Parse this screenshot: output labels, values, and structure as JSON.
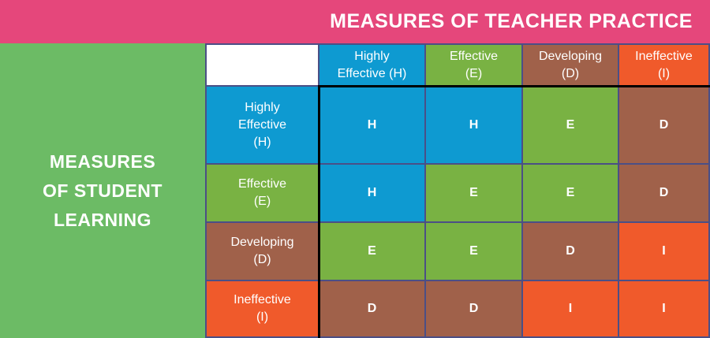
{
  "header": {
    "title": "MEASURES OF TEACHER PRACTICE"
  },
  "left_label": {
    "lines": [
      "MEASURES",
      "OF STUDENT",
      "LEARNING"
    ]
  },
  "palette": {
    "H": "#0e9ad1",
    "E": "#79b243",
    "D": "#a0614a",
    "I": "#f05a2b"
  },
  "columns": [
    {
      "lines": [
        "Highly",
        "Effective (H)"
      ],
      "color": "#0e9ad1"
    },
    {
      "lines": [
        "Effective",
        "(E)"
      ],
      "color": "#79b243"
    },
    {
      "lines": [
        "Developing",
        "(D)"
      ],
      "color": "#a0614a"
    },
    {
      "lines": [
        "Ineffective",
        "(I)"
      ],
      "color": "#f05a2b"
    }
  ],
  "rows": [
    {
      "lines": [
        "Highly",
        "Effective",
        "(H)"
      ],
      "color": "#0e9ad1",
      "cells": [
        "H",
        "H",
        "E",
        "D"
      ]
    },
    {
      "lines": [
        "Effective",
        "(E)"
      ],
      "color": "#79b243",
      "cells": [
        "H",
        "E",
        "E",
        "D"
      ]
    },
    {
      "lines": [
        "Developing",
        "(D)"
      ],
      "color": "#a0614a",
      "cells": [
        "E",
        "E",
        "D",
        "I"
      ]
    },
    {
      "lines": [
        "Ineffective",
        "(I)"
      ],
      "color": "#f05a2b",
      "cells": [
        "D",
        "D",
        "I",
        "I"
      ]
    }
  ]
}
